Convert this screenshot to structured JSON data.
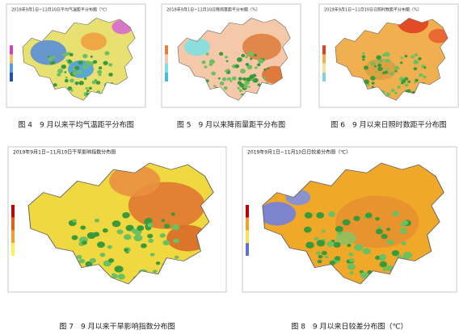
{
  "figures": [
    {
      "title": "2019年9月1日~11月10日平均气温距平分布图（℃）",
      "caption": "图 4　9 月以来平均气温距平分布图"
    },
    {
      "title": "2019年9月1日~11月10日降雨量距平分布图（%）",
      "caption": "图 5　9 月以来降雨量距平分布图"
    },
    {
      "title": "2019年9月1日~11月10日日照时数距平分布图（%）",
      "caption": "图 6　9 月以来日照时数距平分布图"
    },
    {
      "title": "2019年9月1日~11月10日干旱影响指数分布图",
      "caption": "图 7　9 月以来干旱影响指数分布图"
    },
    {
      "title": "2019年9月1日~11月10日日较差分布图（℃）",
      "caption": "图 8　9 月以来日较差分布图（℃）"
    }
  ]
}
